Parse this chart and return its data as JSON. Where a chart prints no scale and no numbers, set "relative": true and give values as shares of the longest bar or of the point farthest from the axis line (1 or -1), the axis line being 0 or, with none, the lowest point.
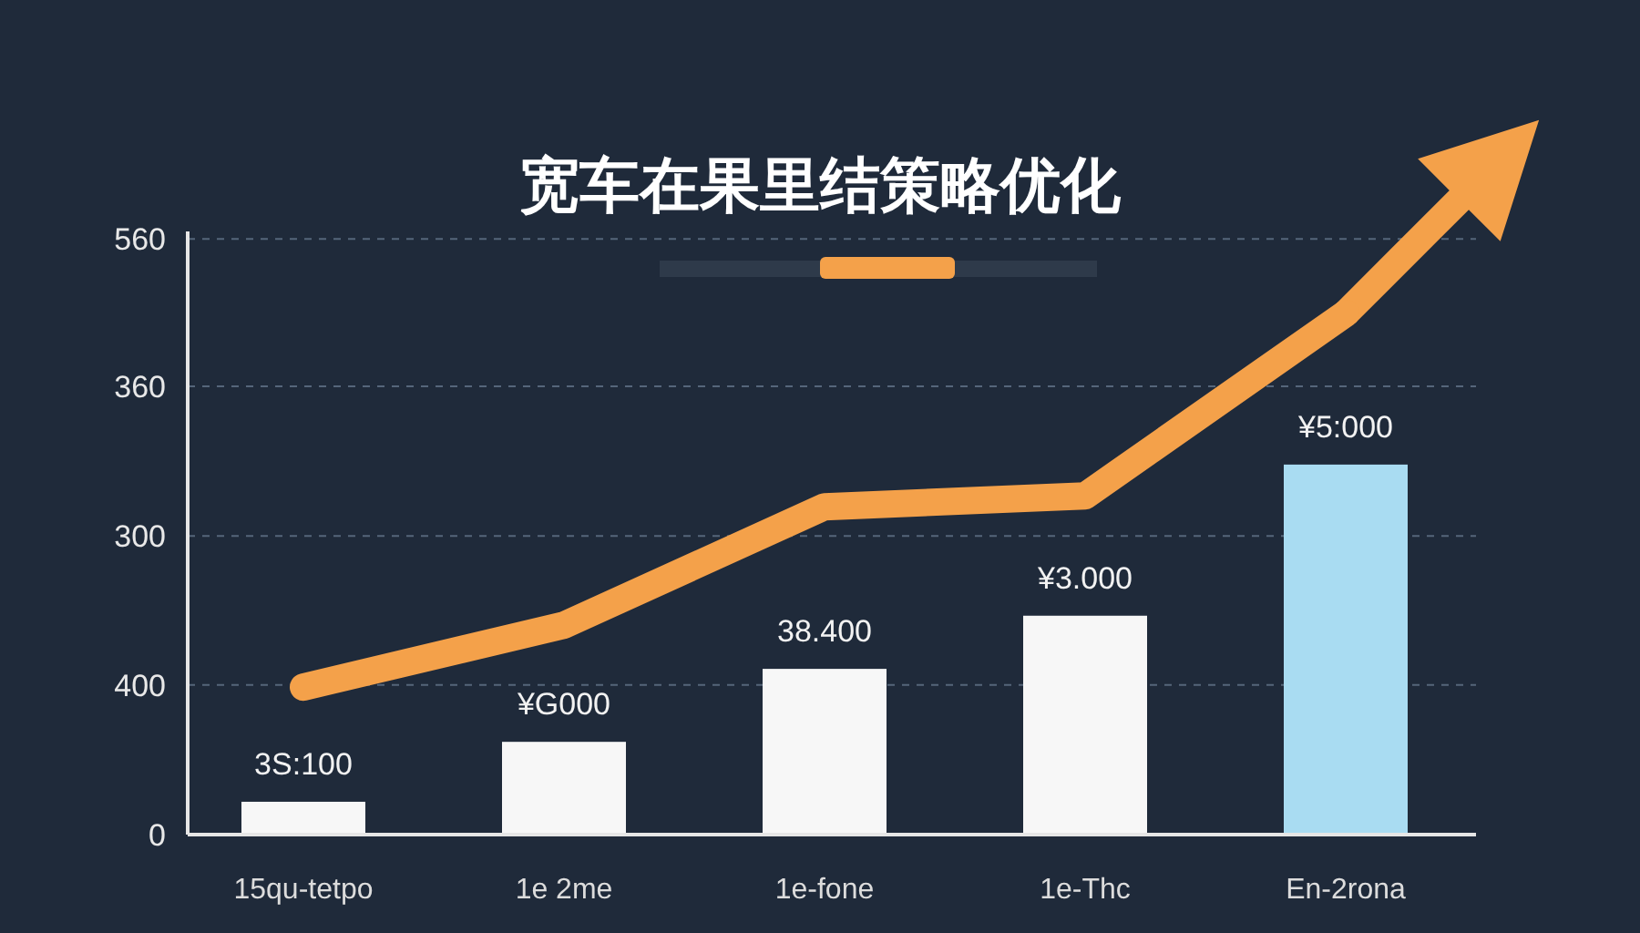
{
  "chart_data": {
    "type": "bar",
    "title": "宽车在果里结策略优化",
    "relative": true,
    "categories": [
      "15qu-tetpo",
      "1e  2me",
      "1e-fone",
      "1e-Thc",
      "En-2rona"
    ],
    "series": [
      {
        "values": [
          0.063,
          0.178,
          0.318,
          0.42,
          0.71
        ],
        "colors": [
          "#f7f7f7",
          "#f7f7f7",
          "#f7f7f7",
          "#f7f7f7",
          "#a9dcf2"
        ]
      },
      {
        "type": "line",
        "color": "#f4a14a",
        "values": [
          0.283,
          0.402,
          0.629,
          0.65,
          1
        ]
      }
    ],
    "annotations": [
      {
        "text": "3S:100",
        "x": "15qu-tetpo",
        "y": 0.063
      },
      {
        "text": "¥G000",
        "x": "1e  2me",
        "y": 0.178
      },
      {
        "text": "38.400",
        "x": "1e-fone",
        "y": 0.318
      },
      {
        "text": "¥3.000",
        "x": "1e-Thc",
        "y": 0.42
      },
      {
        "text": "¥5:000",
        "x": "En-2rona",
        "y": 0.71
      },
      "0",
      "400",
      "300",
      "360",
      "560"
    ],
    "ref_lines": [
      {
        "axis": "y",
        "value": 0.287,
        "color": "#55667a",
        "line_style": "dashed"
      },
      {
        "axis": "y",
        "value": 0.573,
        "color": "#55667a",
        "line_style": "dashed"
      },
      {
        "axis": "y",
        "value": 0.86,
        "color": "#55667a",
        "line_style": "dashed"
      },
      {
        "axis": "y",
        "value": 1.143,
        "color": "#55667a",
        "line_style": "dashed"
      }
    ]
  }
}
